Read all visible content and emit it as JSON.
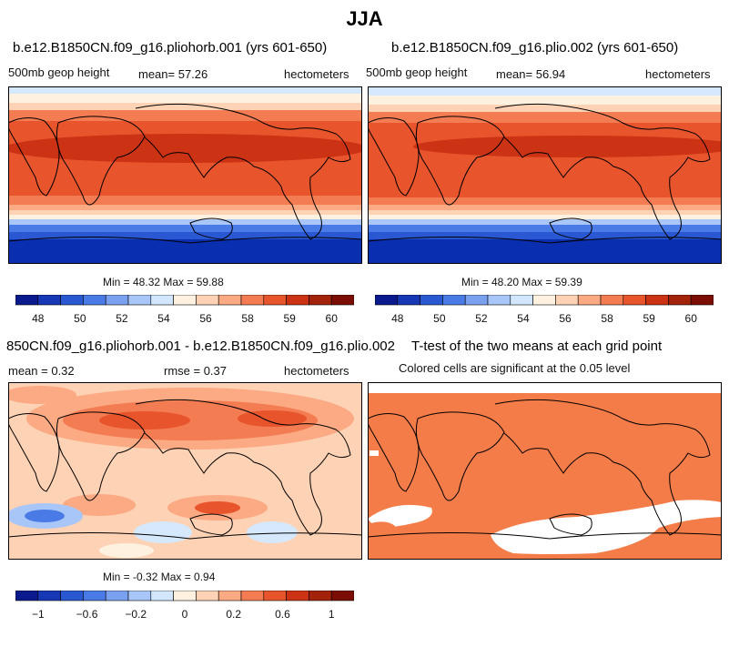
{
  "season": "JJA",
  "panels": [
    {
      "title": "b.e12.B1850CN.f09_g16.pliohorb.001 (yrs 601-650)",
      "left_label": "500mb geop height",
      "center_label": "mean=  57.26",
      "right_label": "hectometers",
      "min_max": "Min =  48.32 Max =  59.88"
    },
    {
      "title": "b.e12.B1850CN.f09_g16.plio.002 (yrs 601-650)",
      "left_label": "500mb geop height",
      "center_label": "mean=  56.94",
      "right_label": "hectometers",
      "min_max": "Min =  48.20 Max =  59.39"
    },
    {
      "title": "850CN.f09_g16.pliohorb.001 - b.e12.B1850CN.f09_g16.plio.002",
      "left_label": "mean =   0.32",
      "center_label": "rmse =   0.37",
      "right_label": "hectometers",
      "min_max": "Min =  -0.32 Max =   0.94"
    },
    {
      "title": "T-test of the two means at each grid point",
      "subtitle": "Colored cells are significant at the 0.05 level"
    }
  ],
  "colorbars": {
    "abs": {
      "colors": [
        "#0a1a8c",
        "#1638b4",
        "#2a58d2",
        "#4a7ae6",
        "#7aa0f0",
        "#a8c6f8",
        "#d2e6fc",
        "#fff1e0",
        "#fed2b4",
        "#fbaa84",
        "#f47c52",
        "#e8542c",
        "#cc3214",
        "#a2220a",
        "#7a0e04"
      ],
      "labels": [
        "48",
        "50",
        "52",
        "54",
        "56",
        "58",
        "59",
        "60"
      ]
    },
    "diff": {
      "colors": [
        "#0a1a8c",
        "#1638b4",
        "#2a58d2",
        "#4a7ae6",
        "#7aa0f0",
        "#a8c6f8",
        "#d2e6fc",
        "#fff1e0",
        "#fed2b4",
        "#fbaa84",
        "#f47c52",
        "#e8542c",
        "#cc3214",
        "#a2220a",
        "#7a0e04"
      ],
      "labels": [
        "−1",
        "−0.6",
        "−0.2",
        "0",
        "0.2",
        "0.6",
        "1"
      ]
    }
  },
  "map_colors": {
    "deep_blue": "#0a2eb0",
    "blue": "#2a58d2",
    "mid_blue": "#4a7ae6",
    "light_blue": "#a8c6f8",
    "pale_blue": "#d6e8fc",
    "cream": "#fff1e0",
    "peach": "#fed2b4",
    "salmon": "#fbaa84",
    "orange": "#f47c52",
    "red_orange": "#e8542c",
    "dark_red": "#cc3214",
    "significant": "#f47c48",
    "insignificant": "#ffffff"
  }
}
